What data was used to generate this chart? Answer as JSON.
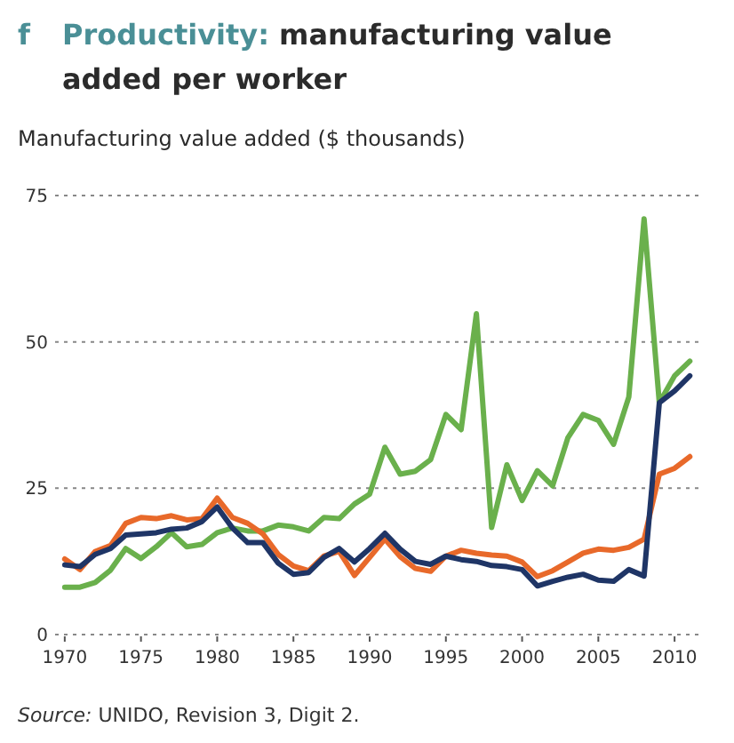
{
  "chart_data": {
    "type": "line",
    "title": "f Productivity: manufacturing value added per worker",
    "ylabel": "Manufacturing value added ($ thousands)",
    "annotations": [
      "Source: UNIDO, Revision 3, Digit 2."
    ],
    "x": [
      1970,
      1971,
      1972,
      1973,
      1974,
      1975,
      1976,
      1977,
      1978,
      1979,
      1980,
      1981,
      1982,
      1983,
      1984,
      1985,
      1986,
      1987,
      1988,
      1989,
      1990,
      1991,
      1992,
      1993,
      1994,
      1995,
      1996,
      1997,
      1998,
      1999,
      2000,
      2001,
      2002,
      2003,
      2004,
      2005,
      2006,
      2007,
      2008,
      2009,
      2010,
      2011
    ],
    "series": [
      {
        "color": "#6ab04c",
        "values": [
          8.1,
          8.1,
          8.9,
          11,
          14.7,
          13,
          15,
          17.4,
          15,
          15.4,
          17.4,
          18.2,
          17.7,
          17.7,
          18.7,
          18.4,
          17.7,
          20,
          19.8,
          22.3,
          24,
          32,
          27.4,
          27.9,
          29.9,
          37.6,
          35,
          54.8,
          18.3,
          29,
          22.9,
          28,
          25.4,
          33.6,
          37.6,
          36.6,
          32.5,
          40.6,
          71,
          39.6,
          44.2,
          46.7
        ]
      },
      {
        "color": "#e8692a",
        "values": [
          12.9,
          11.1,
          14.2,
          15.2,
          19,
          20,
          19.8,
          20.3,
          19.6,
          19.8,
          23.3,
          20,
          19,
          17.2,
          13.7,
          11.7,
          10.9,
          13.4,
          14.2,
          10.1,
          13.2,
          16.3,
          13.3,
          11.3,
          10.8,
          13.4,
          14.4,
          13.9,
          13.6,
          13.4,
          12.4,
          9.9,
          10.9,
          12.4,
          13.9,
          14.6,
          14.4,
          14.9,
          16.3,
          27.4,
          28.4,
          30.4
        ]
      },
      {
        "color": "#1f3566",
        "values": [
          11.9,
          11.6,
          13.7,
          14.7,
          17,
          17.2,
          17.4,
          18,
          18.2,
          19.3,
          21.8,
          18.2,
          15.7,
          15.7,
          12.2,
          10.3,
          10.6,
          13.2,
          14.7,
          12.4,
          14.7,
          17.3,
          14.6,
          12.5,
          12,
          13.4,
          12.8,
          12.5,
          11.8,
          11.6,
          11.1,
          8.3,
          9.1,
          9.8,
          10.3,
          9.3,
          9.1,
          11.1,
          10,
          39.6,
          41.6,
          44.2
        ]
      }
    ],
    "xlim": [
      1969.6,
      2011.8
    ],
    "xticks": [
      1970,
      1975,
      1980,
      1985,
      1990,
      1995,
      2000,
      2005,
      2010
    ],
    "ylim": [
      0,
      75
    ],
    "yticks": [
      0,
      25,
      50,
      75
    ],
    "grid": "y",
    "marker": "none",
    "line_style": "solid"
  }
}
